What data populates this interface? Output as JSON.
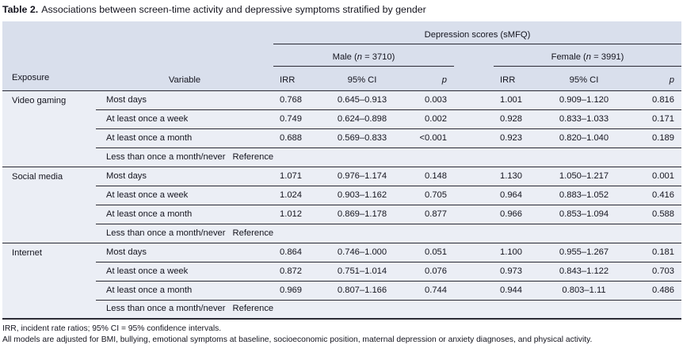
{
  "title": {
    "label": "Table 2.",
    "text": "Associations between screen-time activity and depressive symptoms stratified by gender"
  },
  "table": {
    "span_header": "Depression scores (sMFQ)",
    "groups": [
      {
        "prefix": "Male (",
        "n": "n",
        "suffix": " = 3710)"
      },
      {
        "prefix": "Female (",
        "n": "n",
        "suffix": " = 3991)"
      }
    ],
    "columns": {
      "exposure": "Exposure",
      "variable": "Variable",
      "irr": "IRR",
      "ci": "95% CI",
      "p": "p"
    },
    "sections": [
      {
        "exposure": "Video gaming",
        "rows": [
          {
            "variable": "Most days",
            "male": {
              "irr": "0.768",
              "ci": "0.645–0.913",
              "p": "0.003"
            },
            "female": {
              "irr": "1.001",
              "ci": "0.909–1.120",
              "p": "0.816"
            }
          },
          {
            "variable": "At least once a week",
            "male": {
              "irr": "0.749",
              "ci": "0.624–0.898",
              "p": "0.002"
            },
            "female": {
              "irr": "0.928",
              "ci": "0.833–1.033",
              "p": "0.171"
            }
          },
          {
            "variable": "At least once a month",
            "male": {
              "irr": "0.688",
              "ci": "0.569–0.833",
              "p": "<0.001"
            },
            "female": {
              "irr": "0.923",
              "ci": "0.820–1.040",
              "p": "0.189"
            }
          }
        ],
        "reference": {
          "variable": "Less than once a month/never",
          "value": "Reference"
        }
      },
      {
        "exposure": "Social media",
        "rows": [
          {
            "variable": "Most days",
            "male": {
              "irr": "1.071",
              "ci": "0.976–1.174",
              "p": "0.148"
            },
            "female": {
              "irr": "1.130",
              "ci": "1.050–1.217",
              "p": "0.001"
            }
          },
          {
            "variable": "At least once a week",
            "male": {
              "irr": "1.024",
              "ci": "0.903–1.162",
              "p": "0.705"
            },
            "female": {
              "irr": "0.964",
              "ci": "0.883–1.052",
              "p": "0.416"
            }
          },
          {
            "variable": "At least once a month",
            "male": {
              "irr": "1.012",
              "ci": "0.869–1.178",
              "p": "0.877"
            },
            "female": {
              "irr": "0.966",
              "ci": "0.853–1.094",
              "p": "0.588"
            }
          }
        ],
        "reference": {
          "variable": "Less than once a month/never",
          "value": "Reference"
        }
      },
      {
        "exposure": "Internet",
        "rows": [
          {
            "variable": "Most days",
            "male": {
              "irr": "0.864",
              "ci": "0.746–1.000",
              "p": "0.051"
            },
            "female": {
              "irr": "1.100",
              "ci": "0.955–1.267",
              "p": "0.181"
            }
          },
          {
            "variable": "At least once a week",
            "male": {
              "irr": "0.872",
              "ci": "0.751–1.014",
              "p": "0.076"
            },
            "female": {
              "irr": "0.973",
              "ci": "0.843–1.122",
              "p": "0.703"
            }
          },
          {
            "variable": "At least once a month",
            "male": {
              "irr": "0.969",
              "ci": "0.807–1.166",
              "p": "0.744"
            },
            "female": {
              "irr": "0.944",
              "ci": "0.803–1.11",
              "p": "0.486"
            }
          }
        ],
        "reference": {
          "variable": "Less than once a month/never",
          "value": "Reference"
        }
      }
    ]
  },
  "footnotes": [
    "IRR, incident rate ratios; 95% CI = 95% confidence intervals.",
    "All models are adjusted for BMI, bullying, emotional symptoms at baseline, socioeconomic position, maternal depression or anxiety diagnoses, and physical activity."
  ],
  "colors": {
    "header_bg": "#d9dfec",
    "body_bg": "#ebeef5",
    "rule_line": "#2b2b35",
    "text": "#15151f"
  }
}
